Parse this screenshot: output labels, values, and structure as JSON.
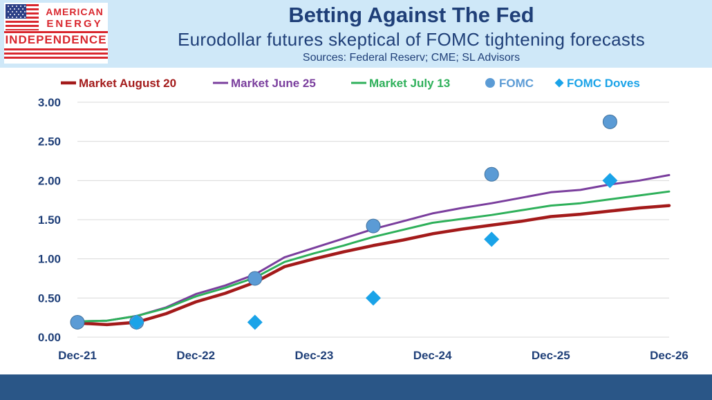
{
  "header": {
    "title": "Betting Against The Fed",
    "subtitle": "Eurodollar futures skeptical of FOMC tightening forecasts",
    "sources": "Sources: Federal Reserv; CME; SL Advisors"
  },
  "logo": {
    "line1": "AMERICAN",
    "line2": "ENERGY",
    "line3": "INDEPENDENCE"
  },
  "colors": {
    "header_band": "#cfe8f8",
    "title_text": "#1f3f78",
    "footer_band": "#2a5687",
    "axis_text": "#1f3f78",
    "gridline": "#d9d9d9"
  },
  "chart_data": {
    "type": "line",
    "title": "",
    "xlabel": "",
    "ylabel": "",
    "x_ticks": [
      "Dec-21",
      "Dec-22",
      "Dec-23",
      "Dec-24",
      "Dec-25",
      "Dec-26"
    ],
    "ylim": [
      0,
      3
    ],
    "y_ticks": [
      "0.00",
      "0.50",
      "1.00",
      "1.50",
      "2.00",
      "2.50",
      "3.00"
    ],
    "grid": true,
    "legend_position": "top",
    "series": [
      {
        "name": "Market August 20",
        "kind": "line",
        "color": "#a31a1a",
        "x": [
          "Dec-21",
          "Mar-22",
          "Jun-22",
          "Sep-22",
          "Dec-22",
          "Mar-23",
          "Jun-23",
          "Sep-23",
          "Dec-23",
          "Mar-24",
          "Jun-24",
          "Sep-24",
          "Dec-24",
          "Mar-25",
          "Jun-25",
          "Sep-25",
          "Dec-25",
          "Mar-26",
          "Jun-26",
          "Sep-26",
          "Dec-26"
        ],
        "values": [
          0.18,
          0.16,
          0.19,
          0.3,
          0.45,
          0.56,
          0.7,
          0.9,
          1.0,
          1.09,
          1.17,
          1.24,
          1.32,
          1.38,
          1.43,
          1.48,
          1.54,
          1.57,
          1.61,
          1.65,
          1.68
        ]
      },
      {
        "name": "Market June 25",
        "kind": "line",
        "color": "#7a3e9d",
        "x": [
          "Dec-21",
          "Mar-22",
          "Jun-22",
          "Sep-22",
          "Dec-22",
          "Mar-23",
          "Jun-23",
          "Sep-23",
          "Dec-23",
          "Mar-24",
          "Jun-24",
          "Sep-24",
          "Dec-24",
          "Mar-25",
          "Jun-25",
          "Sep-25",
          "Dec-25",
          "Mar-26",
          "Jun-26",
          "Sep-26",
          "Dec-26"
        ],
        "values": [
          0.2,
          0.21,
          0.27,
          0.38,
          0.55,
          0.66,
          0.8,
          1.02,
          1.14,
          1.26,
          1.38,
          1.48,
          1.58,
          1.65,
          1.71,
          1.78,
          1.85,
          1.88,
          1.95,
          2.0,
          2.07
        ]
      },
      {
        "name": "Market July 13",
        "kind": "line",
        "color": "#2eb05a",
        "x": [
          "Dec-21",
          "Mar-22",
          "Jun-22",
          "Sep-22",
          "Dec-22",
          "Mar-23",
          "Jun-23",
          "Sep-23",
          "Dec-23",
          "Mar-24",
          "Jun-24",
          "Sep-24",
          "Dec-24",
          "Mar-25",
          "Jun-25",
          "Sep-25",
          "Dec-25",
          "Mar-26",
          "Jun-26",
          "Sep-26",
          "Dec-26"
        ],
        "values": [
          0.2,
          0.21,
          0.27,
          0.37,
          0.52,
          0.63,
          0.76,
          0.96,
          1.07,
          1.17,
          1.28,
          1.37,
          1.46,
          1.51,
          1.56,
          1.62,
          1.68,
          1.71,
          1.76,
          1.81,
          1.86
        ]
      },
      {
        "name": "FOMC",
        "kind": "marker",
        "marker": "circle",
        "color": "#5b9bd5",
        "x": [
          "Dec-21",
          "Jun-22",
          "Jun-23",
          "Jun-24",
          "Jun-25",
          "Jun-26"
        ],
        "values": [
          0.19,
          0.19,
          0.75,
          1.42,
          2.08,
          2.75
        ]
      },
      {
        "name": "FOMC Doves",
        "kind": "marker",
        "marker": "diamond",
        "color": "#1aa3e8",
        "x": [
          "Jun-22",
          "Jun-23",
          "Jun-24",
          "Jun-25",
          "Jun-26"
        ],
        "values": [
          0.19,
          0.19,
          0.5,
          1.25,
          2.0
        ]
      }
    ]
  }
}
